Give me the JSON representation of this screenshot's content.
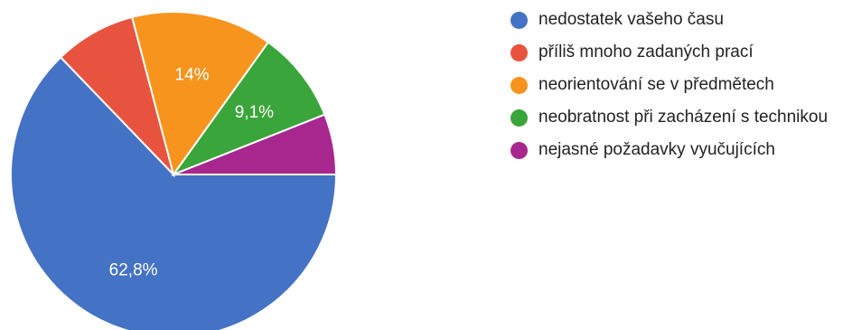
{
  "chart_data": {
    "type": "pie",
    "title": "",
    "start": "3 o'clock, clockwise",
    "slices": [
      {
        "label": "nedostatek vašeho času",
        "value": 62.8,
        "display": "62,8%",
        "color": "#4472C4"
      },
      {
        "label": "příliš mnoho zadaných prací",
        "value": 8.1,
        "display": "",
        "color": "#E8533F"
      },
      {
        "label": "neorientování se v předmětech",
        "value": 14.0,
        "display": "14%",
        "color": "#F7941D"
      },
      {
        "label": "neobratnost při zacházení s technikou",
        "value": 9.1,
        "display": "9,1%",
        "color": "#3AA53A"
      },
      {
        "label": "nejasné požadavky vyučujících",
        "value": 6.0,
        "display": "",
        "color": "#A8278F"
      }
    ],
    "legend_position": "right"
  }
}
